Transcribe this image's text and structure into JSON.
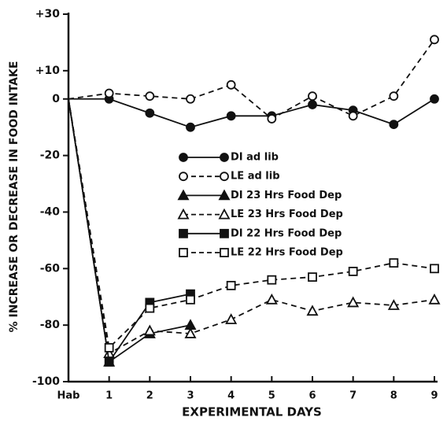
{
  "chart_data": {
    "type": "line",
    "y_label": "% INCREASE OR DECREASE IN FOOD INTAKE",
    "x_label": "EXPERIMENTAL DAYS",
    "categories": [
      "Hab",
      "1",
      "2",
      "3",
      "4",
      "5",
      "6",
      "7",
      "8",
      "9"
    ],
    "ylim": [
      -100,
      30
    ],
    "yticks": [
      {
        "value": 30,
        "label": "+30"
      },
      {
        "value": 10,
        "label": "+10"
      },
      0,
      -20,
      -40,
      -60,
      -80,
      -100
    ],
    "grid": false,
    "legend": "center",
    "series": [
      {
        "name": "DI ad lib",
        "color": "#111111",
        "marker": "circle",
        "filled": true,
        "dashed": false,
        "values": [
          0,
          0,
          -5,
          -10,
          -6,
          -6,
          -2,
          -4,
          -9,
          0
        ]
      },
      {
        "name": "LE ad lib",
        "color": "#111111",
        "marker": "circle",
        "filled": false,
        "dashed": true,
        "values": [
          0,
          2,
          1,
          0,
          5,
          -7,
          1,
          -6,
          1,
          21
        ]
      },
      {
        "name": "DI 23 Hrs Food Dep",
        "color": "#111111",
        "marker": "triangle",
        "filled": true,
        "dashed": false,
        "values": [
          0,
          -93,
          -83,
          -80,
          null,
          null,
          null,
          null,
          null,
          null
        ]
      },
      {
        "name": "LE 23 Hrs Food Dep",
        "color": "#111111",
        "marker": "triangle",
        "filled": false,
        "dashed": true,
        "values": [
          0,
          -90,
          -82,
          -83,
          -78,
          -71,
          -75,
          -72,
          -73,
          -71
        ]
      },
      {
        "name": "DI 22 Hrs Food Dep",
        "color": "#111111",
        "marker": "square",
        "filled": true,
        "dashed": false,
        "values": [
          0,
          -93,
          -72,
          -69,
          null,
          null,
          null,
          null,
          null,
          null
        ]
      },
      {
        "name": "LE 22 Hrs Food Dep",
        "color": "#111111",
        "marker": "square",
        "filled": false,
        "dashed": true,
        "values": [
          0,
          -88,
          -74,
          -71,
          -66,
          -64,
          -63,
          -61,
          -58,
          -60
        ]
      }
    ]
  }
}
